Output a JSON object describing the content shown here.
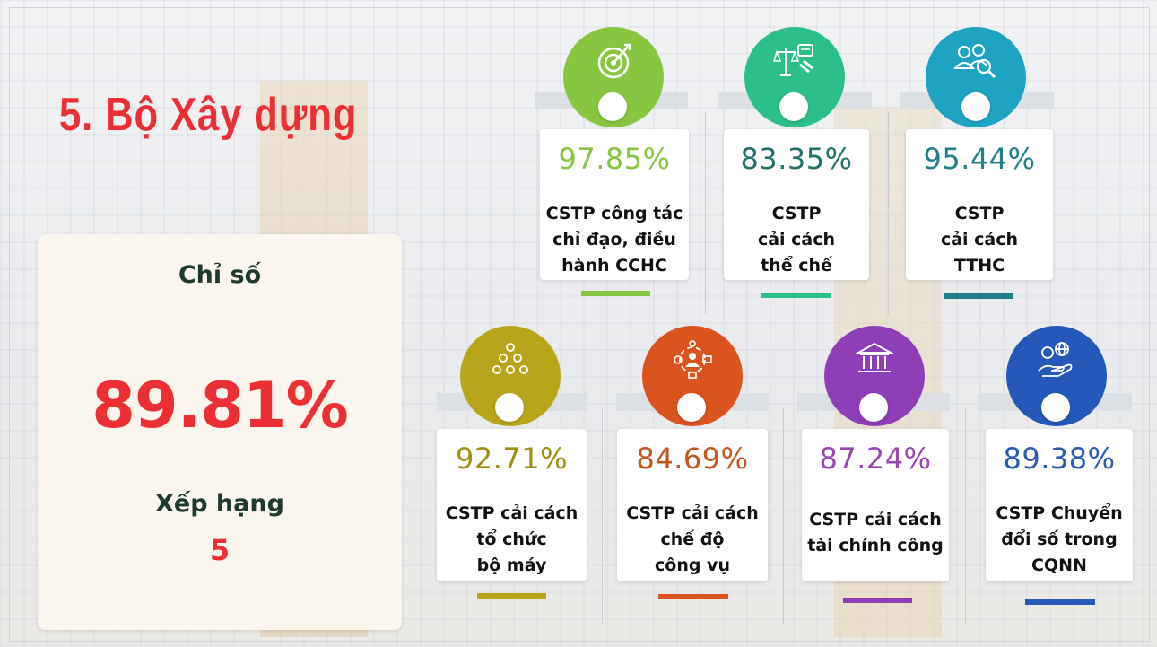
{
  "title": "5. Bộ Xây dựng",
  "summary": {
    "index_label": "Chỉ số",
    "index_value": "89.81%",
    "rank_label": "Xếp hạng",
    "rank_value": "5"
  },
  "colors": {
    "title": "#ec2f34",
    "dark_text": "#1d3a2e",
    "panel": "#faf6ee"
  },
  "cards": [
    {
      "percent": "97.85%",
      "lines": [
        "CSTP công tác",
        "chỉ đạo, điều",
        "hành CCHC"
      ],
      "color": "#88c540",
      "icon": "target-icon"
    },
    {
      "percent": "83.35%",
      "lines": [
        "CSTP",
        "cải cách",
        "thể chế"
      ],
      "color": "#2cbf8a",
      "pct_color": "#23726b",
      "icon": "law-scales-icon"
    },
    {
      "percent": "95.44%",
      "lines": [
        "CSTP",
        "cải cách",
        "TTHC"
      ],
      "color": "#1fa3c2",
      "pct_color": "#23808a",
      "icon": "people-search-icon"
    },
    {
      "percent": "92.71%",
      "lines": [
        "CSTP cải cách",
        "tổ chức",
        "bộ máy"
      ],
      "color": "#b9a51c",
      "pct_color": "#a08f10",
      "icon": "org-structure-icon"
    },
    {
      "percent": "84.69%",
      "lines": [
        "CSTP cải cách",
        "chế độ",
        "công vụ"
      ],
      "color": "#d9541f",
      "pct_color": "#c9541e",
      "icon": "civil-service-icon"
    },
    {
      "percent": "87.24%",
      "lines": [
        "CSTP cải cách",
        "tài chính công"
      ],
      "color": "#8e3fb8",
      "pct_color": "#9a46b3",
      "icon": "bank-building-icon"
    },
    {
      "percent": "89.38%",
      "lines": [
        "CSTP Chuyển",
        "đổi số trong",
        "CQNN"
      ],
      "color": "#2558b8",
      "pct_color": "#2a5bb5",
      "icon": "digital-hand-icon"
    }
  ]
}
